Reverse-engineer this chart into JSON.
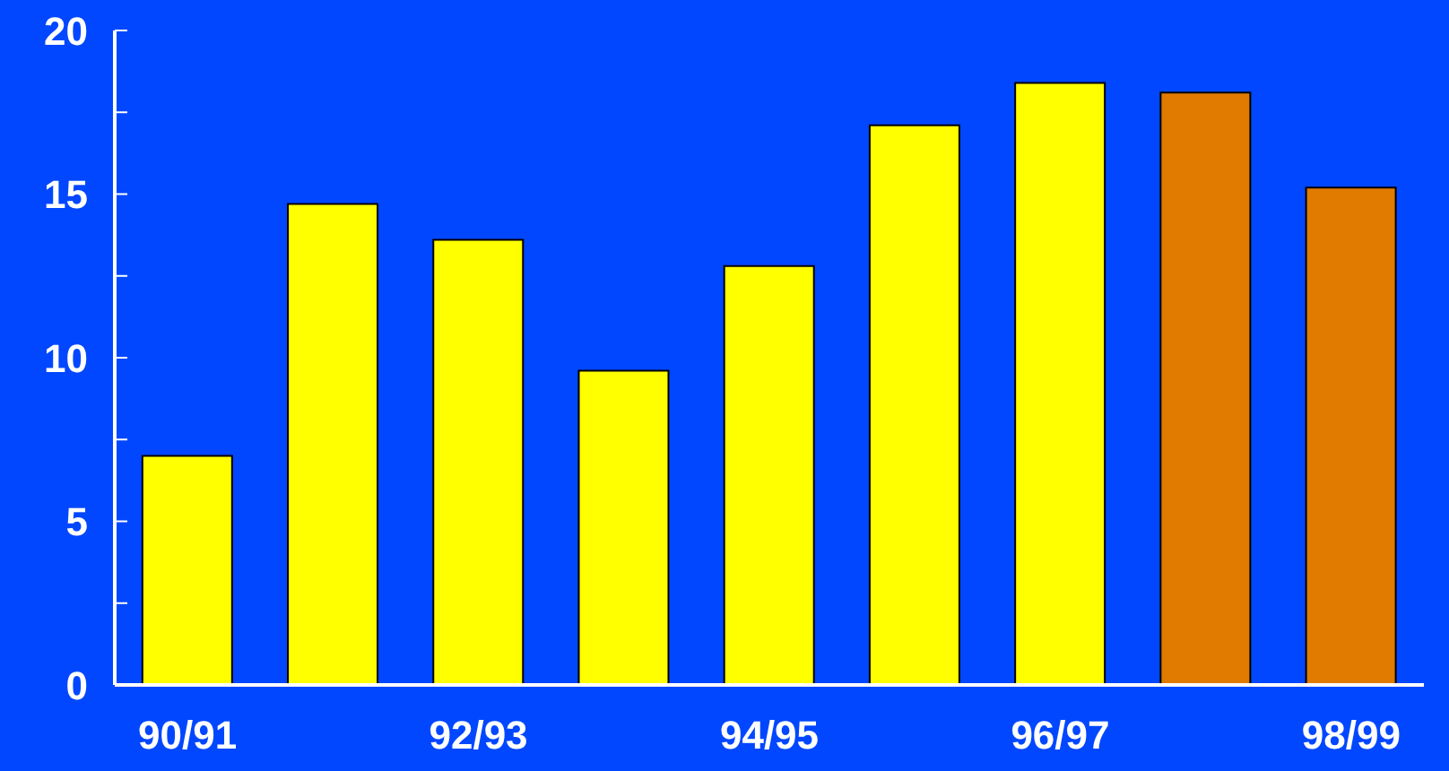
{
  "chart_data": {
    "type": "bar",
    "categories": [
      "90/91",
      null,
      "92/93",
      null,
      "94/95",
      null,
      "96/97",
      null,
      "98/99"
    ],
    "values": [
      7.0,
      14.7,
      13.6,
      9.6,
      12.8,
      17.1,
      18.4,
      18.1,
      15.2
    ],
    "colors": [
      "#ffff00",
      "#ffff00",
      "#ffff00",
      "#ffff00",
      "#ffff00",
      "#ffff00",
      "#ffff00",
      "#e07b00",
      "#e07b00"
    ],
    "ylim": [
      0,
      20
    ],
    "yticks": [
      0,
      {
        "value": 2.5,
        "label": null
      },
      5,
      {
        "value": 7.5,
        "label": null
      },
      10,
      {
        "value": 12.5,
        "label": null
      },
      15,
      {
        "value": 17.5,
        "label": null
      },
      20
    ],
    "grid": false
  }
}
